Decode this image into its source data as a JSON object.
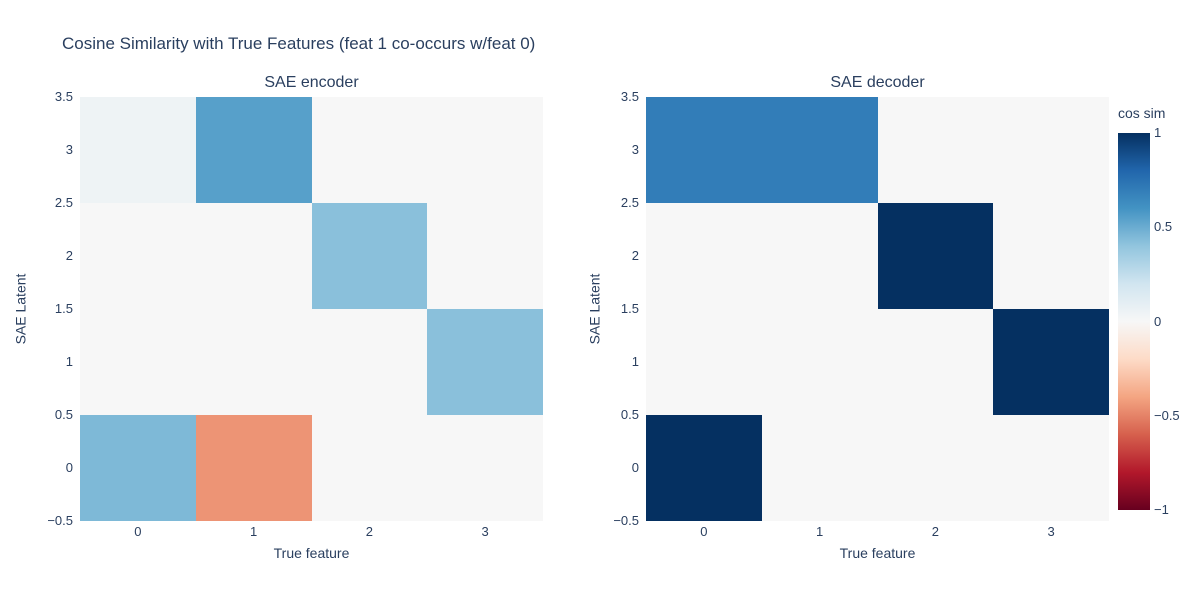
{
  "figure": {
    "title": "Cosine Similarity with True Features (feat 1 co-occurs w/feat 0)",
    "text_color": "#2a3f5f",
    "background_color": "#ffffff"
  },
  "chart_data": [
    {
      "type": "heatmap",
      "title": "SAE encoder",
      "xlabel": "True feature",
      "ylabel": "SAE Latent",
      "x": [
        0,
        1,
        2,
        3
      ],
      "y": [
        0,
        1,
        2,
        3
      ],
      "x_range": [
        -0.5,
        3.5
      ],
      "y_range": [
        -0.5,
        3.5
      ],
      "x_tick_labels": [
        "0",
        "1",
        "2",
        "3"
      ],
      "y_tick_labels": [
        "3.5",
        "3",
        "2.5",
        "2",
        "1.5",
        "1",
        "0.5",
        "0",
        "−0.5"
      ],
      "z_rows_bottom_to_top": [
        [
          0.45,
          -0.45,
          0,
          0
        ],
        [
          0,
          0,
          0,
          0.42
        ],
        [
          0,
          0,
          0.42,
          0
        ],
        [
          0.05,
          0.55,
          0,
          0
        ]
      ]
    },
    {
      "type": "heatmap",
      "title": "SAE decoder",
      "xlabel": "True feature",
      "ylabel": "SAE Latent",
      "x": [
        0,
        1,
        2,
        3
      ],
      "y": [
        0,
        1,
        2,
        3
      ],
      "x_range": [
        -0.5,
        3.5
      ],
      "y_range": [
        -0.5,
        3.5
      ],
      "x_tick_labels": [
        "0",
        "1",
        "2",
        "3"
      ],
      "y_tick_labels": [
        "3.5",
        "3",
        "2.5",
        "2",
        "1.5",
        "1",
        "0.5",
        "0",
        "−0.5"
      ],
      "z_rows_bottom_to_top": [
        [
          1,
          0,
          0,
          0
        ],
        [
          0,
          0,
          0,
          1
        ],
        [
          0,
          0,
          1,
          0
        ],
        [
          0.7,
          0.7,
          0,
          0
        ]
      ]
    }
  ],
  "colorbar": {
    "title": "cos sim",
    "tick_labels": [
      "1",
      "0.5",
      "0",
      "−0.5",
      "−1"
    ],
    "min": -1,
    "max": 1,
    "colorscale_name": "RdBu",
    "colorscale": [
      [
        -1.0,
        "#67001f"
      ],
      [
        -0.8,
        "#b2182b"
      ],
      [
        -0.6,
        "#d6604d"
      ],
      [
        -0.4,
        "#f4a582"
      ],
      [
        -0.2,
        "#fddbc7"
      ],
      [
        0.0,
        "#f7f7f7"
      ],
      [
        0.2,
        "#d1e5f0"
      ],
      [
        0.4,
        "#92c5de"
      ],
      [
        0.6,
        "#4393c3"
      ],
      [
        0.8,
        "#2166ac"
      ],
      [
        1.0,
        "#053061"
      ]
    ]
  }
}
